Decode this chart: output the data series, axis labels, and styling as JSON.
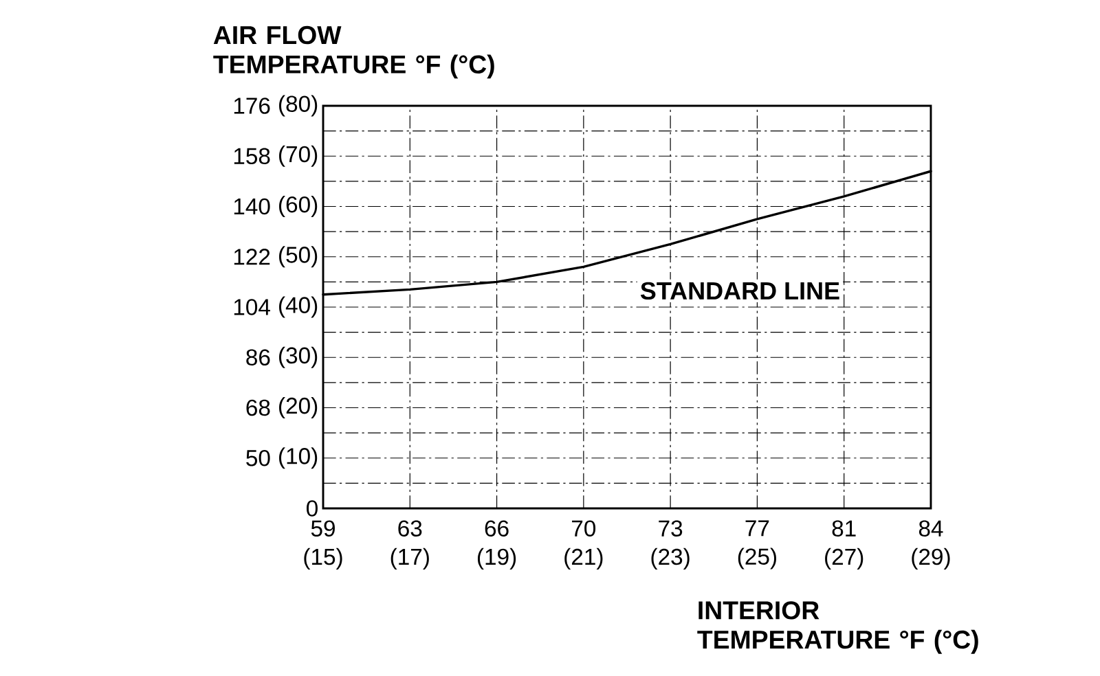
{
  "chart_data": {
    "type": "line",
    "xlabel": "INTERIOR TEMPERATURE °F (°C)",
    "ylabel": "AIR FLOW TEMPERATURE °F (°C)",
    "categories": [
      "59 (15)",
      "63 (17)",
      "66 (19)",
      "70 (21)",
      "73 (23)",
      "77 (25)",
      "81 (27)",
      "84 (29)"
    ],
    "series": [
      {
        "name": "STANDARD LINE",
        "color": "#000000",
        "values": [
          42.5,
          43.5,
          45,
          48,
          52.5,
          57.5,
          62,
          67
        ]
      }
    ],
    "ylim": [
      0,
      80
    ],
    "yticks": [
      0,
      {
        "value": 5,
        "label": null
      },
      {
        "value": 10,
        "label": "(10)"
      },
      {
        "value": 15,
        "label": null
      },
      {
        "value": 20,
        "label": "(20)"
      },
      {
        "value": 25,
        "label": null
      },
      {
        "value": 30,
        "label": "(30)"
      },
      {
        "value": 35,
        "label": null
      },
      {
        "value": 40,
        "label": "(40)"
      },
      {
        "value": 45,
        "label": null
      },
      {
        "value": 50,
        "label": "(50)"
      },
      {
        "value": 55,
        "label": null
      },
      {
        "value": 60,
        "label": "(60)"
      },
      {
        "value": 65,
        "label": null
      },
      {
        "value": 70,
        "label": "(70)"
      },
      {
        "value": 75,
        "label": null
      },
      {
        "value": 80,
        "label": "(80)"
      }
    ],
    "y2lim": [
      32,
      176
    ],
    "y2ticks": [
      50,
      68,
      86,
      104,
      122,
      140,
      158,
      176
    ],
    "grid": true
  }
}
